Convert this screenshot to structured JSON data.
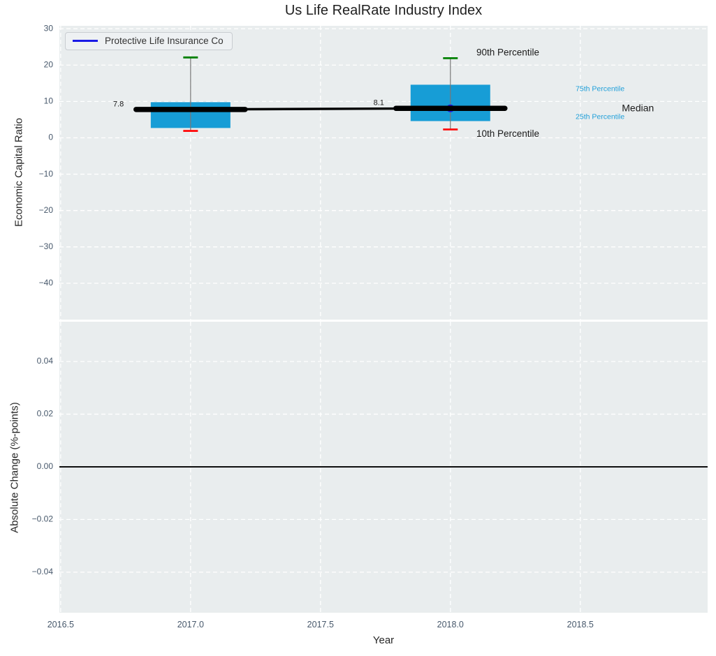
{
  "title": "Us Life RealRate Industry Index",
  "xlabel": "Year",
  "legend": {
    "label": "Protective Life Insurance Co",
    "line_color": "#1a1ae6"
  },
  "colors": {
    "plot_bg": "#e9edee",
    "grid": "#ffffff",
    "box_fill": "#179dd6",
    "median": "#000000",
    "whisker": "#787878",
    "cap_90": "#008000",
    "cap_10": "#ff0d0d",
    "company": "#1a1ae6",
    "tick_label": "#47586b",
    "text_dark": "#1a1a1a",
    "annotation_blue": "#1f9fd9",
    "zero_line": "#000000"
  },
  "chart_data": [
    {
      "type": "boxplot",
      "panel": "top",
      "title": "Us Life RealRate Industry Index",
      "ylabel": "Economic Capital Ratio",
      "ylim": [
        -50.0,
        30.8
      ],
      "xlim": [
        2016.495,
        2018.99
      ],
      "grid": "dashed-white",
      "yticks": [
        {
          "v": 30,
          "label": "30"
        },
        {
          "v": 20,
          "label": "20"
        },
        {
          "v": 10,
          "label": "10"
        },
        {
          "v": 0,
          "label": "0"
        },
        {
          "v": -10,
          "label": "−10"
        },
        {
          "v": -20,
          "label": "−20"
        },
        {
          "v": -30,
          "label": "−30"
        },
        {
          "v": -40,
          "label": "−40"
        }
      ],
      "xticks": [
        {
          "v": 2016.5,
          "label": "2016.5"
        },
        {
          "v": 2017.0,
          "label": "2017.0"
        },
        {
          "v": 2017.5,
          "label": "2017.5"
        },
        {
          "v": 2018.0,
          "label": "2018.0"
        },
        {
          "v": 2018.5,
          "label": "2018.5"
        }
      ],
      "show_xtick_labels": false,
      "boxes": [
        {
          "x": 2017.0,
          "p10": 1.9,
          "q1": 2.7,
          "median": 7.8,
          "q3": 9.8,
          "p90": 22.1,
          "median_label": "7.8"
        },
        {
          "x": 2018.0,
          "p10": 2.3,
          "q1": 4.6,
          "median": 8.1,
          "q3": 14.6,
          "p90": 21.9,
          "median_label": "8.1"
        }
      ],
      "median_trend": {
        "x": [
          2017.0,
          2018.0
        ],
        "y": [
          7.8,
          8.1
        ]
      },
      "company_series": {
        "name": "Protective Life Insurance Co",
        "points": [
          {
            "x": 2017.0,
            "y": 7.8,
            "marker_r": 0
          },
          {
            "x": 2018.0,
            "y": 8.1,
            "marker_r": 5.5
          }
        ]
      },
      "annotations": [
        {
          "text": "7.8",
          "x": 2016.743,
          "y": 9.2,
          "anchor": "end",
          "size": 11,
          "color": "#1a1a1a"
        },
        {
          "text": "8.1",
          "x": 2017.745,
          "y": 9.6,
          "anchor": "end",
          "size": 11,
          "color": "#1a1a1a"
        },
        {
          "text": "90th Percentile",
          "x": 2018.1,
          "y": 23.3,
          "anchor": "start",
          "size": 13.5,
          "color": "#1a1a1a"
        },
        {
          "text": "10th Percentile",
          "x": 2018.1,
          "y": 0.95,
          "anchor": "start",
          "size": 13.5,
          "color": "#1a1a1a"
        },
        {
          "text": "75th Percentile",
          "x": 2018.482,
          "y": 13.4,
          "anchor": "start",
          "size": 10.5,
          "color": "#1f9fd9"
        },
        {
          "text": "Median",
          "x": 2018.66,
          "y": 8.0,
          "anchor": "start",
          "size": 14,
          "color": "#1a1a1a"
        },
        {
          "text": "25th Percentile",
          "x": 2018.482,
          "y": 5.7,
          "anchor": "start",
          "size": 10.5,
          "color": "#1f9fd9"
        }
      ]
    },
    {
      "type": "line",
      "panel": "bottom",
      "ylabel": "Absolute Change (%-points)",
      "ylim": [
        -0.0554,
        0.0551
      ],
      "xlim": [
        2016.495,
        2018.99
      ],
      "grid": "dashed-white",
      "yticks": [
        {
          "v": 0.04,
          "label": "0.04"
        },
        {
          "v": 0.02,
          "label": "0.02"
        },
        {
          "v": 0.0,
          "label": "0.00"
        },
        {
          "v": -0.02,
          "label": "−0.02"
        },
        {
          "v": -0.04,
          "label": "−0.04"
        }
      ],
      "xticks": [
        {
          "v": 2016.5,
          "label": "2016.5"
        },
        {
          "v": 2017.0,
          "label": "2017.0"
        },
        {
          "v": 2017.5,
          "label": "2017.5"
        },
        {
          "v": 2018.0,
          "label": "2018.0"
        },
        {
          "v": 2018.5,
          "label": "2018.5"
        }
      ],
      "show_xtick_labels": true,
      "zero_line": 0.0
    }
  ]
}
